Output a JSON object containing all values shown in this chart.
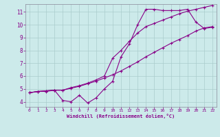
{
  "bg_color": "#cceaea",
  "line_color": "#880088",
  "grid_color": "#aacccc",
  "xlabel": "Windchill (Refroidissement éolien,°C)",
  "xlim": [
    -0.5,
    22.5
  ],
  "ylim": [
    3.6,
    11.6
  ],
  "xticks": [
    0,
    1,
    2,
    3,
    4,
    5,
    6,
    7,
    8,
    9,
    10,
    11,
    12,
    13,
    14,
    15,
    16,
    17,
    18,
    19,
    20,
    21,
    22
  ],
  "yticks": [
    4,
    5,
    6,
    7,
    8,
    9,
    10,
    11
  ],
  "line1_x": [
    0,
    1,
    2,
    3,
    4,
    5,
    6,
    7,
    8,
    9,
    10,
    11,
    12,
    13,
    14,
    15,
    16,
    17,
    18,
    19,
    20,
    21,
    22
  ],
  "line1_y": [
    4.7,
    4.8,
    4.8,
    4.9,
    4.1,
    4.0,
    4.5,
    3.9,
    4.3,
    5.0,
    5.6,
    7.5,
    8.5,
    10.0,
    11.2,
    11.2,
    11.1,
    11.1,
    11.1,
    11.2,
    10.2,
    9.7,
    9.8
  ],
  "line2_x": [
    0,
    1,
    2,
    3,
    4,
    5,
    6,
    7,
    8,
    9,
    10,
    11,
    12,
    13,
    14,
    15,
    16,
    17,
    18,
    19,
    20,
    21,
    22
  ],
  "line2_y": [
    4.7,
    4.8,
    4.85,
    4.9,
    4.9,
    5.05,
    5.2,
    5.4,
    5.6,
    5.85,
    6.1,
    6.4,
    6.75,
    7.1,
    7.5,
    7.85,
    8.2,
    8.55,
    8.85,
    9.15,
    9.5,
    9.75,
    9.85
  ],
  "line3_x": [
    0,
    1,
    2,
    3,
    4,
    5,
    6,
    7,
    8,
    9,
    10,
    11,
    12,
    13,
    14,
    15,
    16,
    17,
    18,
    19,
    20,
    21,
    22
  ],
  "line3_y": [
    4.7,
    4.8,
    4.85,
    4.9,
    4.9,
    5.1,
    5.25,
    5.45,
    5.7,
    6.0,
    7.4,
    8.0,
    8.7,
    9.35,
    9.85,
    10.1,
    10.35,
    10.6,
    10.85,
    11.05,
    11.2,
    11.35,
    11.5
  ]
}
